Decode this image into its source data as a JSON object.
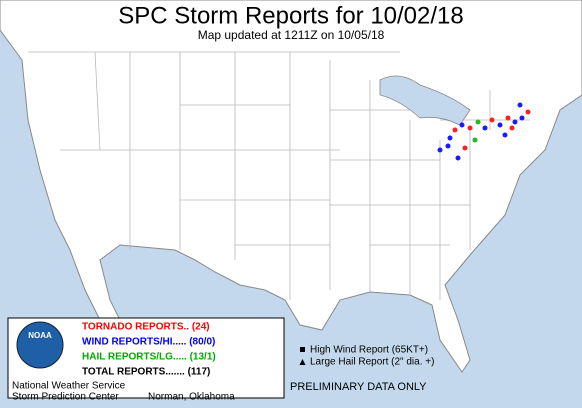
{
  "header": {
    "title": "SPC Storm Reports for 10/02/18",
    "subtitle": "Map updated at 1211Z on 10/05/18"
  },
  "legend": {
    "logo": "NOAA",
    "items": [
      "TORNADO REPORTS.. (24)",
      "WIND REPORTS/HI..... (80/0)",
      "HAIL REPORTS/LG..... (13/1)",
      "TOTAL REPORTS....... (117)"
    ],
    "office": [
      "National Weather Service",
      "Storm Prediction Center"
    ],
    "city": "Norman, Oklahoma"
  },
  "key": [
    "High Wind Report (65KT+)",
    "Large Hail Report (2\" dia. +)"
  ],
  "notice": "PRELIMINARY DATA ONLY"
}
